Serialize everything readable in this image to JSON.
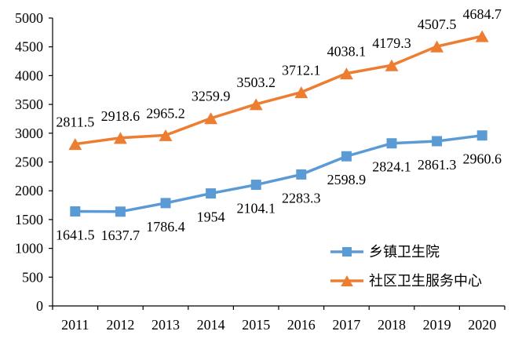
{
  "chart_data": {
    "type": "line",
    "categories": [
      "2011",
      "2012",
      "2013",
      "2014",
      "2015",
      "2016",
      "2017",
      "2018",
      "2019",
      "2020"
    ],
    "series": [
      {
        "name": "乡镇卫生院",
        "color": "#5B9BD5",
        "marker": "square",
        "label_position": "below",
        "values": [
          1641.5,
          1637.7,
          1786.4,
          1954,
          2104.1,
          2283.3,
          2598.9,
          2824.1,
          2861.3,
          2960.6
        ]
      },
      {
        "name": "社区卫生服务中心",
        "color": "#ED7D31",
        "marker": "triangle",
        "label_position": "above",
        "values": [
          2811.5,
          2918.6,
          2965.2,
          3259.9,
          3503.2,
          3712.1,
          4038.1,
          4179.3,
          4507.5,
          4684.7
        ]
      }
    ],
    "ylim": [
      0,
      5000
    ],
    "y_ticks": [
      0,
      500,
      1000,
      1500,
      2000,
      2500,
      3000,
      3500,
      4000,
      4500,
      5000
    ],
    "grid": false,
    "data_labels": true,
    "legend_position": "inside-right-bottom",
    "axis_color": "#000000",
    "text_color": "#000000",
    "background_color": "#FFFFFF"
  }
}
